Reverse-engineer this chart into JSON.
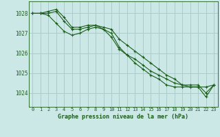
{
  "title": "Graphe pression niveau de la mer (hPa)",
  "bg_color": "#cce8e6",
  "grid_color": "#aaccca",
  "line_color": "#1a5c1a",
  "xlim": [
    -0.5,
    23.5
  ],
  "ylim": [
    1023.3,
    1028.6
  ],
  "xticks": [
    0,
    1,
    2,
    3,
    4,
    5,
    6,
    7,
    8,
    9,
    10,
    11,
    12,
    13,
    14,
    15,
    16,
    17,
    18,
    19,
    20,
    21,
    22,
    23
  ],
  "yticks": [
    1024,
    1025,
    1026,
    1027,
    1028
  ],
  "series": [
    [
      1028.0,
      1028.0,
      1028.1,
      1028.2,
      1027.8,
      1027.3,
      1027.3,
      1027.4,
      1027.4,
      1027.2,
      1027.0,
      1026.3,
      1025.9,
      1025.7,
      1025.4,
      1025.1,
      1024.9,
      1024.7,
      1024.5,
      1024.4,
      1024.4,
      1024.4,
      1024.0,
      1024.4
    ],
    [
      1028.0,
      1028.0,
      1028.0,
      1028.1,
      1027.6,
      1027.2,
      1027.2,
      1027.3,
      1027.4,
      1027.3,
      1027.2,
      1026.7,
      1026.4,
      1026.1,
      1025.8,
      1025.5,
      1025.2,
      1024.9,
      1024.7,
      1024.4,
      1024.3,
      1024.3,
      1024.3,
      1024.4
    ],
    [
      1028.0,
      1028.0,
      1027.9,
      1027.5,
      1027.1,
      1026.9,
      1027.0,
      1027.2,
      1027.3,
      1027.2,
      1026.8,
      1026.2,
      1025.9,
      1025.5,
      1025.2,
      1024.9,
      1024.7,
      1024.4,
      1024.3,
      1024.3,
      1024.3,
      1024.3,
      1023.8,
      1024.4
    ]
  ]
}
